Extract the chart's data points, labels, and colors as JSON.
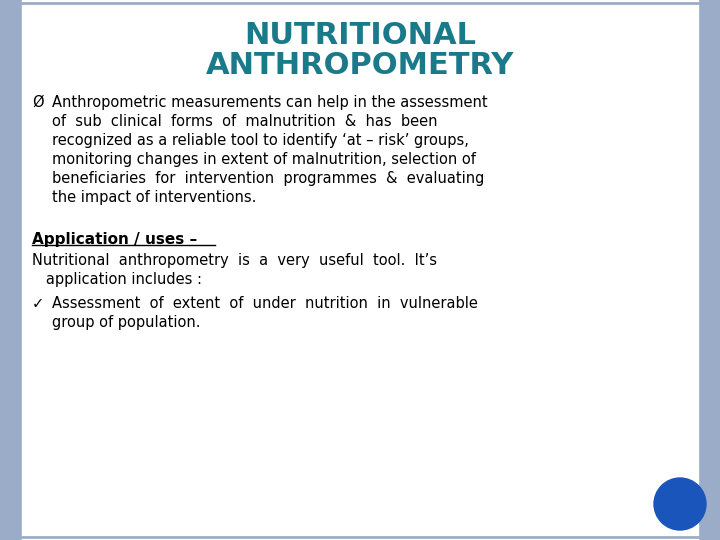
{
  "title_line1": "NUTRITIONAL",
  "title_line2": "ANTHROPOMETRY",
  "title_color": "#1a7a8a",
  "background_color": "#e8eef5",
  "border_color": "#9aacc8",
  "slide_bg": "#ffffff",
  "bullet1_symbol": "Ø",
  "section_heading": "Application / uses –",
  "circle_color": "#1a55bb",
  "text_color": "#000000",
  "title_fontsize": 22,
  "body_fontsize": 10.5,
  "heading_fontsize": 11,
  "bullet1_lines": [
    "Anthropometric measurements can help in the assessment",
    "of  sub  clinical  forms  of  malnutrition  &  has  been",
    "recognized as a reliable tool to identify ‘at – risk’ groups,",
    "monitoring changes in extent of malnutrition, selection of",
    "beneficiaries  for  intervention  programmes  &  evaluating",
    "the impact of interventions."
  ],
  "para1_lines": [
    "Nutritional  anthropometry  is  a  very  useful  tool.  It’s",
    "   application includes :"
  ],
  "bullet2_symbol": "✓",
  "bullet2_lines": [
    "Assessment  of  extent  of  under  nutrition  in  vulnerable",
    "group of population."
  ]
}
